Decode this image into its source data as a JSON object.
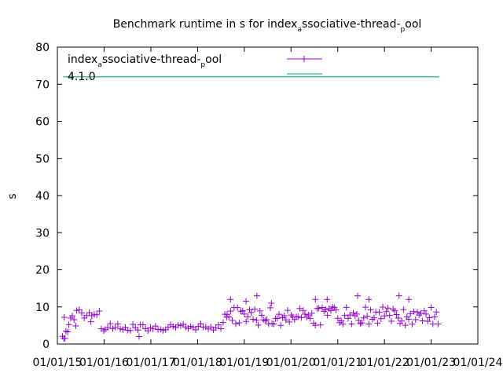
{
  "chart_data": {
    "type": "scatter",
    "title": {
      "parts": [
        "Benchmark runtime in s for index",
        "a",
        "ssociative-thread-",
        "p",
        "ool"
      ]
    },
    "ylabel": "s",
    "xlabel": "",
    "ylim": [
      0,
      80
    ],
    "xlim": [
      "2015-01-01",
      "2024-01-01"
    ],
    "y_ticks": [
      "0",
      "10",
      "20",
      "30",
      "40",
      "50",
      "60",
      "70",
      "80"
    ],
    "x_ticks": [
      "01/01/15",
      "01/01/16",
      "01/01/17",
      "01/01/18",
      "01/01/19",
      "01/01/20",
      "01/01/21",
      "01/01/22",
      "01/01/23",
      "01/01/24"
    ],
    "grid": false,
    "legend_position": "top-left",
    "series": [
      {
        "name_parts": [
          "index",
          "a",
          "ssociative-thread-",
          "p",
          "ool"
        ],
        "color": "#9400d3",
        "marker": "plus",
        "segments": [
          {
            "from": "2015-02-10",
            "to": "2015-04-01",
            "low": 2,
            "high": 8
          },
          {
            "from": "2015-04-01",
            "to": "2015-06-01",
            "low": 4,
            "high": 8
          },
          {
            "from": "2015-06-01",
            "to": "2015-12-10",
            "low": 7,
            "high": 10
          },
          {
            "from": "2015-12-10",
            "to": "2016-01-10",
            "low": 3,
            "high": 6
          },
          {
            "from": "2016-01-10",
            "to": "2018-07-20",
            "low": 3.5,
            "high": 5.5
          },
          {
            "from": "2018-07-20",
            "to": "2018-08-20",
            "low": 5,
            "high": 10
          },
          {
            "from": "2018-08-20",
            "to": "2023-03-01",
            "low": 5,
            "high": 10
          }
        ],
        "outliers": [
          {
            "x": "2015-03-01",
            "y": 1.5
          },
          {
            "x": "2015-02-20",
            "y": 1.5
          },
          {
            "x": "2015-09-20",
            "y": 6
          },
          {
            "x": "2016-10-01",
            "y": 2
          },
          {
            "x": "2018-09-15",
            "y": 12
          },
          {
            "x": "2019-01-15",
            "y": 11.5
          },
          {
            "x": "2019-04-10",
            "y": 13
          },
          {
            "x": "2019-08-01",
            "y": 11
          },
          {
            "x": "2020-07-10",
            "y": 12
          },
          {
            "x": "2020-10-10",
            "y": 12
          },
          {
            "x": "2021-06-05",
            "y": 13
          },
          {
            "x": "2021-09-01",
            "y": 12
          },
          {
            "x": "2022-04-25",
            "y": 13
          },
          {
            "x": "2022-07-10",
            "y": 12
          }
        ]
      },
      {
        "name": "4.1.0",
        "color": "#009e73",
        "marker": "line",
        "points": [
          {
            "x": "2015-02-15",
            "y": 72
          },
          {
            "x": "2023-03-05",
            "y": 72
          }
        ]
      }
    ]
  }
}
